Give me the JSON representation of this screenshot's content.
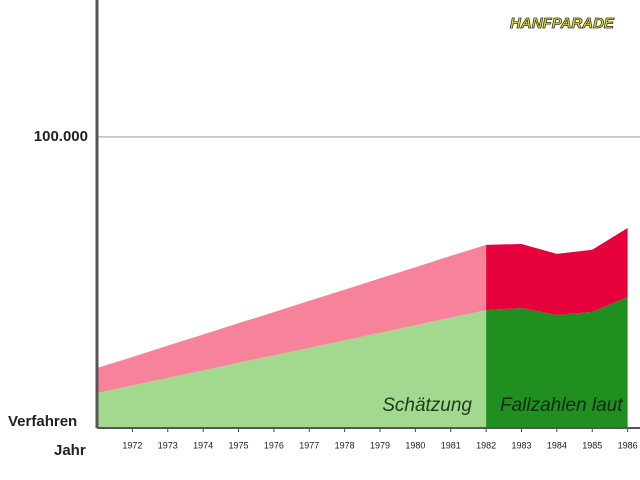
{
  "logo": "HANFPARADE",
  "chart_data": {
    "type": "stacked_area",
    "ylabel": "Verfahren",
    "xlabel": "Jahr",
    "x": [
      1971,
      1972,
      1973,
      1974,
      1975,
      1976,
      1977,
      1978,
      1979,
      1980,
      1981,
      1982,
      1983,
      1984,
      1985,
      1986
    ],
    "xticks": [
      1972,
      1973,
      1974,
      1975,
      1976,
      1977,
      1978,
      1979,
      1980,
      1981,
      1982,
      1983,
      1984,
      1985,
      1986
    ],
    "xlim": [
      1971,
      1986.35
    ],
    "ylim": [
      0,
      147000
    ],
    "yticks": [
      {
        "value": 100000,
        "label": "100.000"
      }
    ],
    "grid": true,
    "split": 1982,
    "series": [
      {
        "color": "#a3d98f",
        "color_after": "#1f8f1f",
        "values": [
          12000,
          14600,
          17200,
          19800,
          22400,
          25000,
          27500,
          30100,
          32700,
          35300,
          37900,
          40500,
          41200,
          38800,
          39900,
          45000
        ]
      },
      {
        "color": "#f7839a",
        "color_after": "#e6003c",
        "values": [
          8600,
          9800,
          11100,
          12300,
          13600,
          14800,
          16200,
          17400,
          18700,
          19900,
          21200,
          22400,
          22000,
          21000,
          21300,
          23700
        ]
      }
    ],
    "annotations": [
      "Schätzung",
      "Fallzahlen laut"
    ]
  }
}
